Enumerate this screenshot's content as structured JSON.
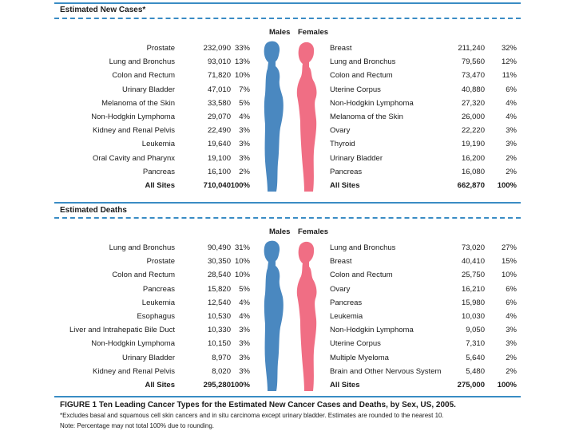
{
  "colors": {
    "accent": "#3a8cc4",
    "male": "#4a88c0",
    "female": "#f06e84"
  },
  "new_cases": {
    "title": "Estimated New Cases*",
    "males_label": "Males",
    "females_label": "Females",
    "male_rows": [
      {
        "site": "Prostate",
        "count": "232,090",
        "pct": "33%"
      },
      {
        "site": "Lung and Bronchus",
        "count": "93,010",
        "pct": "13%"
      },
      {
        "site": "Colon and Rectum",
        "count": "71,820",
        "pct": "10%"
      },
      {
        "site": "Urinary Bladder",
        "count": "47,010",
        "pct": "7%"
      },
      {
        "site": "Melanoma of the Skin",
        "count": "33,580",
        "pct": "5%"
      },
      {
        "site": "Non-Hodgkin Lymphoma",
        "count": "29,070",
        "pct": "4%"
      },
      {
        "site": "Kidney and Renal Pelvis",
        "count": "22,490",
        "pct": "3%"
      },
      {
        "site": "Leukemia",
        "count": "19,640",
        "pct": "3%"
      },
      {
        "site": "Oral Cavity and Pharynx",
        "count": "19,100",
        "pct": "3%"
      },
      {
        "site": "Pancreas",
        "count": "16,100",
        "pct": "2%"
      }
    ],
    "male_total": {
      "site": "All Sites",
      "count": "710,040",
      "pct": "100%"
    },
    "female_rows": [
      {
        "site": "Breast",
        "count": "211,240",
        "pct": "32%"
      },
      {
        "site": "Lung and Bronchus",
        "count": "79,560",
        "pct": "12%"
      },
      {
        "site": "Colon and Rectum",
        "count": "73,470",
        "pct": "11%"
      },
      {
        "site": "Uterine Corpus",
        "count": "40,880",
        "pct": "6%"
      },
      {
        "site": "Non-Hodgkin Lymphoma",
        "count": "27,320",
        "pct": "4%"
      },
      {
        "site": "Melanoma of the Skin",
        "count": "26,000",
        "pct": "4%"
      },
      {
        "site": "Ovary",
        "count": "22,220",
        "pct": "3%"
      },
      {
        "site": "Thyroid",
        "count": "19,190",
        "pct": "3%"
      },
      {
        "site": "Urinary Bladder",
        "count": "16,200",
        "pct": "2%"
      },
      {
        "site": "Pancreas",
        "count": "16,080",
        "pct": "2%"
      }
    ],
    "female_total": {
      "site": "All Sites",
      "count": "662,870",
      "pct": "100%"
    }
  },
  "deaths": {
    "title": "Estimated Deaths",
    "males_label": "Males",
    "females_label": "Females",
    "male_rows": [
      {
        "site": "Lung and Bronchus",
        "count": "90,490",
        "pct": "31%"
      },
      {
        "site": "Prostate",
        "count": "30,350",
        "pct": "10%"
      },
      {
        "site": "Colon and Rectum",
        "count": "28,540",
        "pct": "10%"
      },
      {
        "site": "Pancreas",
        "count": "15,820",
        "pct": "5%"
      },
      {
        "site": "Leukemia",
        "count": "12,540",
        "pct": "4%"
      },
      {
        "site": "Esophagus",
        "count": "10,530",
        "pct": "4%"
      },
      {
        "site": "Liver and Intrahepatic Bile Duct",
        "count": "10,330",
        "pct": "3%"
      },
      {
        "site": "Non-Hodgkin Lymphoma",
        "count": "10,150",
        "pct": "3%"
      },
      {
        "site": "Urinary Bladder",
        "count": "8,970",
        "pct": "3%"
      },
      {
        "site": "Kidney and Renal Pelvis",
        "count": "8,020",
        "pct": "3%"
      }
    ],
    "male_total": {
      "site": "All Sites",
      "count": "295,280",
      "pct": "100%"
    },
    "female_rows": [
      {
        "site": "Lung and Bronchus",
        "count": "73,020",
        "pct": "27%"
      },
      {
        "site": "Breast",
        "count": "40,410",
        "pct": "15%"
      },
      {
        "site": "Colon and Rectum",
        "count": "25,750",
        "pct": "10%"
      },
      {
        "site": "Ovary",
        "count": "16,210",
        "pct": "6%"
      },
      {
        "site": "Pancreas",
        "count": "15,980",
        "pct": "6%"
      },
      {
        "site": "Leukemia",
        "count": "10,030",
        "pct": "4%"
      },
      {
        "site": "Non-Hodgkin Lymphoma",
        "count": "9,050",
        "pct": "3%"
      },
      {
        "site": "Uterine Corpus",
        "count": "7,310",
        "pct": "3%"
      },
      {
        "site": "Multiple Myeloma",
        "count": "5,640",
        "pct": "2%"
      },
      {
        "site": "Brain and Other Nervous System",
        "count": "5,480",
        "pct": "2%"
      }
    ],
    "female_total": {
      "site": "All Sites",
      "count": "275,000",
      "pct": "100%"
    }
  },
  "figure": {
    "caption": "FIGURE 1   Ten Leading Cancer Types for the Estimated New Cancer Cases and Deaths, by Sex, US, 2005.",
    "footnote": "*Excludes basal and squamous cell skin cancers and in situ carcinoma except urinary bladder. Estimates are rounded to the nearest 10.",
    "note": "Note: Percentage may not total 100% due to rounding."
  }
}
